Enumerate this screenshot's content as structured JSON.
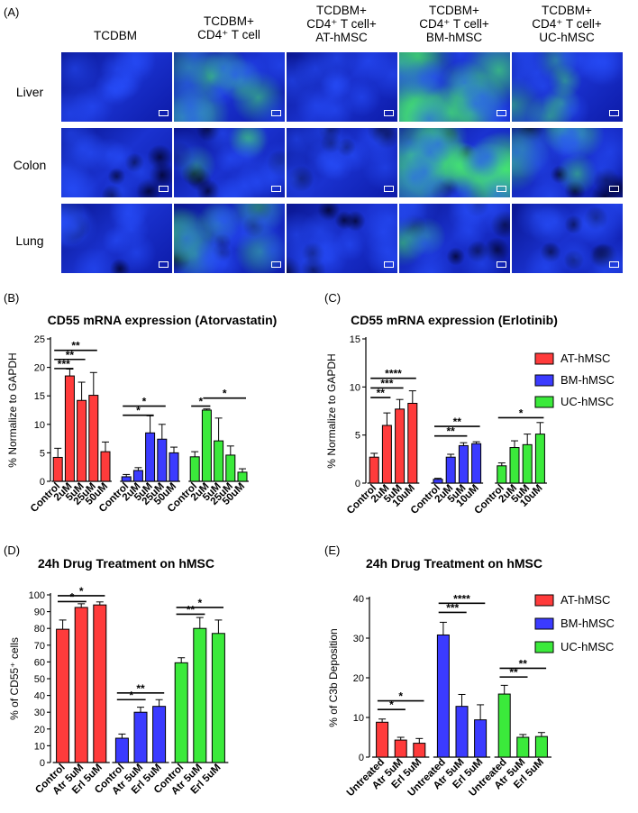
{
  "panels": {
    "A": {
      "label": "(A)",
      "column_headers": [
        {
          "line1": "TCDBM",
          "line2": "",
          "line3": ""
        },
        {
          "line1": "TCDBM+",
          "line2": "CD4⁺ T cell",
          "line3": ""
        },
        {
          "line1": "TCDBM+",
          "line2": "CD4⁺ T cell+",
          "line3": "AT-hMSC"
        },
        {
          "line1": "TCDBM+",
          "line2": "CD4⁺ T cell+",
          "line3": "BM-hMSC"
        },
        {
          "line1": "TCDBM+",
          "line2": "CD4⁺ T cell+",
          "line3": "UC-hMSC"
        }
      ],
      "row_labels": [
        "Liver",
        "Colon",
        "Lung"
      ],
      "green_intensity": [
        [
          0.02,
          0.55,
          0.04,
          0.85,
          0.35
        ],
        [
          0.02,
          0.15,
          0.05,
          0.95,
          0.45
        ],
        [
          0.05,
          0.45,
          0.05,
          0.15,
          0.05
        ]
      ],
      "colors": {
        "blue": "#1428c8",
        "green": "#38e060"
      }
    },
    "B": {
      "label": "(B)"
    },
    "C": {
      "label": "(C)"
    },
    "D": {
      "label": "(D)"
    },
    "E": {
      "label": "(E)"
    }
  },
  "legend": {
    "entries": [
      {
        "name": "AT-hMSC",
        "color": "#ff3b3b"
      },
      {
        "name": "BM-hMSC",
        "color": "#3b3bff"
      },
      {
        "name": "UC-hMSC",
        "color": "#3bea3b"
      }
    ]
  },
  "chart_data": [
    {
      "id": "B",
      "type": "bar",
      "title": "CD55 mRNA expression (Atorvastatin)",
      "ylabel": "% Normalize to GAPDH",
      "ylim": [
        0,
        25
      ],
      "yticks": [
        0,
        5,
        10,
        15,
        20,
        25
      ],
      "groups": [
        {
          "color": "#ff3b3b",
          "categories": [
            "Control",
            "2uM",
            "5uM",
            "25uM",
            "50uM"
          ],
          "values": [
            4.2,
            18.5,
            14.2,
            15.1,
            5.2
          ],
          "errors": [
            1.6,
            1.2,
            3.2,
            4.0,
            1.7
          ]
        },
        {
          "color": "#3b3bff",
          "categories": [
            "Control",
            "2uM",
            "5uM",
            "25uM",
            "50uM"
          ],
          "values": [
            0.8,
            1.9,
            8.5,
            7.4,
            5.0
          ],
          "errors": [
            0.4,
            0.5,
            3.0,
            2.6,
            1.0
          ]
        },
        {
          "color": "#3bea3b",
          "categories": [
            "Control",
            "2uM",
            "5uM",
            "25uM",
            "50uM"
          ],
          "values": [
            4.3,
            12.5,
            7.1,
            4.6,
            1.6
          ],
          "errors": [
            0.9,
            0.2,
            4.0,
            1.6,
            0.6
          ]
        }
      ],
      "significance": [
        {
          "group": 0,
          "from": 0,
          "to": 1,
          "y": 19.8,
          "label": "***"
        },
        {
          "group": 0,
          "from": 0,
          "to": 2,
          "y": 21.4,
          "label": "**"
        },
        {
          "group": 0,
          "from": 0,
          "to": 3,
          "y": 23.0,
          "label": "**"
        },
        {
          "group": 1,
          "from": 0,
          "to": 2,
          "y": 11.6,
          "label": "*"
        },
        {
          "group": 1,
          "from": 0,
          "to": 3,
          "y": 13.2,
          "label": "*"
        },
        {
          "group": 2,
          "from": 0,
          "to": 1,
          "y": 13.2,
          "label": "*"
        },
        {
          "group": 2,
          "from": 1,
          "to": 4,
          "y": 14.6,
          "label": "*"
        }
      ]
    },
    {
      "id": "C",
      "type": "bar",
      "title": "CD55 mRNA expression  (Erlotinib)",
      "ylabel": "% Normalize to GAPDH",
      "ylim": [
        0,
        15
      ],
      "yticks": [
        0,
        5,
        10,
        15
      ],
      "groups": [
        {
          "color": "#ff3b3b",
          "categories": [
            "Control",
            "2uM",
            "5uM",
            "10uM"
          ],
          "values": [
            2.7,
            6.0,
            7.7,
            8.3
          ],
          "errors": [
            0.4,
            1.3,
            1.0,
            1.3
          ]
        },
        {
          "color": "#3b3bff",
          "categories": [
            "Control",
            "2uM",
            "5uM",
            "10uM"
          ],
          "values": [
            0.4,
            2.7,
            3.9,
            4.1
          ],
          "errors": [
            0.1,
            0.3,
            0.3,
            0.2
          ]
        },
        {
          "color": "#3bea3b",
          "categories": [
            "Control",
            "2uM",
            "5uM",
            "10uM"
          ],
          "values": [
            1.8,
            3.7,
            4.0,
            5.1
          ],
          "errors": [
            0.3,
            0.7,
            1.1,
            1.2
          ]
        }
      ],
      "significance": [
        {
          "group": 0,
          "from": 0,
          "to": 1,
          "y": 8.9,
          "label": "**"
        },
        {
          "group": 0,
          "from": 0,
          "to": 2,
          "y": 9.9,
          "label": "***"
        },
        {
          "group": 0,
          "from": 0,
          "to": 3,
          "y": 10.9,
          "label": "****"
        },
        {
          "group": 1,
          "from": 0,
          "to": 2,
          "y": 4.9,
          "label": "**"
        },
        {
          "group": 1,
          "from": 0,
          "to": 3,
          "y": 5.9,
          "label": "**"
        },
        {
          "group": 2,
          "from": 0,
          "to": 3,
          "y": 6.8,
          "label": "*"
        }
      ]
    },
    {
      "id": "D",
      "type": "bar",
      "title": "24h Drug Treatment on hMSC",
      "ylabel": "% of CD55⁺ cells",
      "ylim": [
        0,
        100
      ],
      "yticks": [
        0,
        10,
        20,
        30,
        40,
        50,
        60,
        70,
        80,
        90,
        100
      ],
      "groups": [
        {
          "color": "#ff3b3b",
          "categories": [
            "Control",
            "Atr 5uM",
            "Erl 5uM"
          ],
          "values": [
            79.5,
            92.5,
            94.0
          ],
          "errors": [
            5.5,
            2.2,
            1.8
          ]
        },
        {
          "color": "#3b3bff",
          "categories": [
            "Control",
            "Atr 5uM",
            "Erl 5uM"
          ],
          "values": [
            14.5,
            30.0,
            33.5
          ],
          "errors": [
            2.5,
            3.0,
            4.0
          ]
        },
        {
          "color": "#3bea3b",
          "categories": [
            "Control",
            "Atr 5uM",
            "Erl 5uM"
          ],
          "values": [
            59.5,
            80.0,
            77.0
          ],
          "errors": [
            3.0,
            6.5,
            8.0
          ]
        }
      ],
      "significance": [
        {
          "group": 0,
          "from": 0,
          "to": 1,
          "y": 96.0,
          "label": "*"
        },
        {
          "group": 0,
          "from": 0,
          "to": 2,
          "y": 99.5,
          "label": "*"
        },
        {
          "group": 1,
          "from": 0,
          "to": 1,
          "y": 37.5,
          "label": "*"
        },
        {
          "group": 1,
          "from": 0,
          "to": 2,
          "y": 41.5,
          "label": "**"
        },
        {
          "group": 2,
          "from": 0,
          "to": 1,
          "y": 88.5,
          "label": "**"
        },
        {
          "group": 2,
          "from": 0,
          "to": 2,
          "y": 92.5,
          "label": "*"
        }
      ]
    },
    {
      "id": "E",
      "type": "bar",
      "title": "24h Drug Treatment on hMSC",
      "ylabel": "% of C3b Deposition",
      "ylim": [
        0,
        40
      ],
      "yticks": [
        0,
        10,
        20,
        30,
        40
      ],
      "groups": [
        {
          "color": "#ff3b3b",
          "categories": [
            "Untreated",
            "Atr 5uM",
            "Erl 5uM"
          ],
          "values": [
            8.8,
            4.3,
            3.5
          ],
          "errors": [
            0.8,
            0.7,
            1.2
          ]
        },
        {
          "color": "#3b3bff",
          "categories": [
            "Untreated",
            "Atr 5uM",
            "Erl 5uM"
          ],
          "values": [
            30.8,
            12.8,
            9.4
          ],
          "errors": [
            3.2,
            3.0,
            3.8
          ]
        },
        {
          "color": "#3bea3b",
          "categories": [
            "Untreated",
            "Atr 5uM",
            "Erl 5uM"
          ],
          "values": [
            15.9,
            5.0,
            5.2
          ],
          "errors": [
            2.2,
            0.7,
            1.0
          ]
        }
      ],
      "significance": [
        {
          "group": 0,
          "from": 0,
          "to": 1,
          "y": 12.0,
          "label": "*"
        },
        {
          "group": 0,
          "from": 0,
          "to": 2,
          "y": 14.2,
          "label": "*"
        },
        {
          "group": 1,
          "from": 0,
          "to": 1,
          "y": 36.5,
          "label": "***"
        },
        {
          "group": 1,
          "from": 0,
          "to": 2,
          "y": 38.8,
          "label": "****"
        },
        {
          "group": 2,
          "from": 0,
          "to": 1,
          "y": 20.2,
          "label": "**"
        },
        {
          "group": 2,
          "from": 0,
          "to": 2,
          "y": 22.4,
          "label": "**"
        }
      ]
    }
  ]
}
